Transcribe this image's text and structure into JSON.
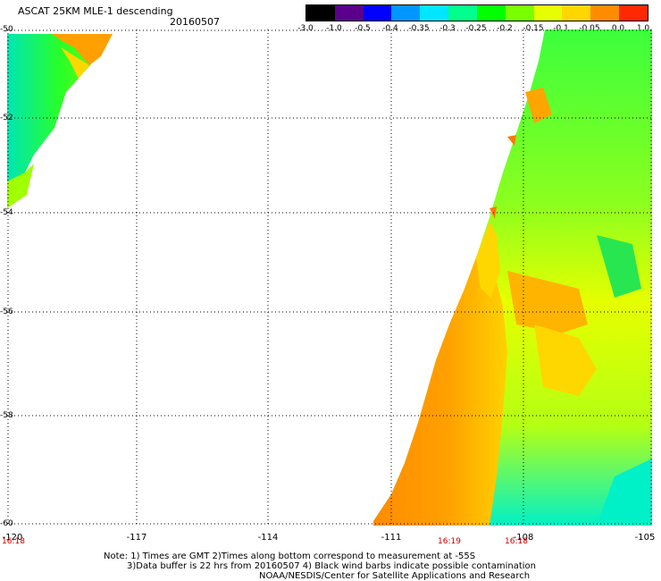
{
  "header": {
    "title": "ASCAT 25KM MLE-1 descending",
    "date": "20160507"
  },
  "colorbar": {
    "labels": [
      "-3.0",
      "-1.0",
      "-0.5",
      "-0.4",
      "-0.35",
      "-0.3",
      "-0.25",
      "-0.2",
      "-0.15",
      "-0.1",
      "-0.05",
      "0.0",
      "1.0"
    ],
    "colors": [
      "#000000",
      "#5a008c",
      "#0000ff",
      "#0096ff",
      "#00e6ff",
      "#00ff8c",
      "#00ff00",
      "#78ff00",
      "#e6ff00",
      "#ffd700",
      "#ff8c00",
      "#ff2800"
    ]
  },
  "axes": {
    "lat_labels": [
      "-50",
      "-52",
      "-54",
      "-56",
      "-58",
      "-60"
    ],
    "lon_labels": [
      "-120",
      "-117",
      "-114",
      "-111",
      "-108",
      "-105"
    ]
  },
  "times": [
    "16:18",
    "16:19",
    "16:18"
  ],
  "notes": [
    "Note: 1) Times are GMT 2)Times along bottom correspond to measurement at -55S",
    "3)Data buffer is 22 hrs from 20160507 4) Black wind barbs indicate possible contamination",
    "NOAA/NESDIS/Center for Satellite Applications and Research"
  ]
}
